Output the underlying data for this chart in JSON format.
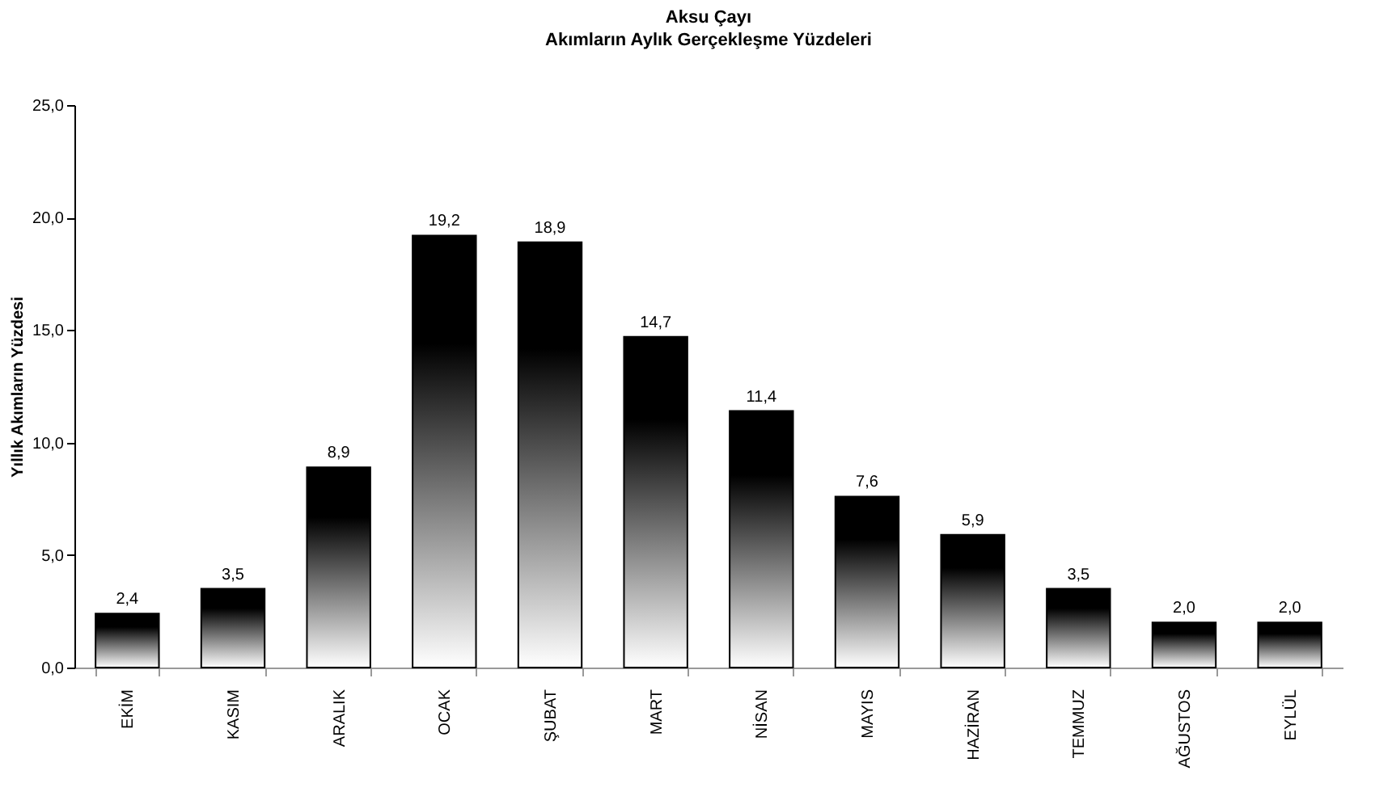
{
  "chart_data": {
    "type": "bar",
    "title": "Aksu Çayı",
    "subtitle": "Akımların Aylık Gerçekleşme Yüzdeleri",
    "ylabel": "Yıllık Akımların Yüzdesi",
    "categories": [
      "EKİM",
      "KASIM",
      "ARALIK",
      "OCAK",
      "ŞUBAT",
      "MART",
      "NİSAN",
      "MAYIS",
      "HAZİRAN",
      "TEMMUZ",
      "AĞUSTOS",
      "EYLÜL"
    ],
    "values": [
      2.4,
      3.5,
      8.9,
      19.2,
      18.9,
      14.7,
      11.4,
      7.6,
      5.9,
      3.5,
      2.0,
      2.0
    ],
    "value_labels": [
      "2,4",
      "3,5",
      "8,9",
      "19,2",
      "18,9",
      "14,7",
      "11,4",
      "7,6",
      "5,9",
      "3,5",
      "2,0",
      "2,0"
    ],
    "color": "#000000",
    "ylim": [
      0,
      25
    ],
    "yticks": [
      {
        "value": 0,
        "label": "0,0"
      },
      {
        "value": 5,
        "label": "5,0"
      },
      {
        "value": 10,
        "label": "10,0"
      },
      {
        "value": 15,
        "label": "15,0"
      },
      {
        "value": 20,
        "label": "20,0"
      },
      {
        "value": 25,
        "label": "25,0"
      }
    ],
    "grid": false
  }
}
